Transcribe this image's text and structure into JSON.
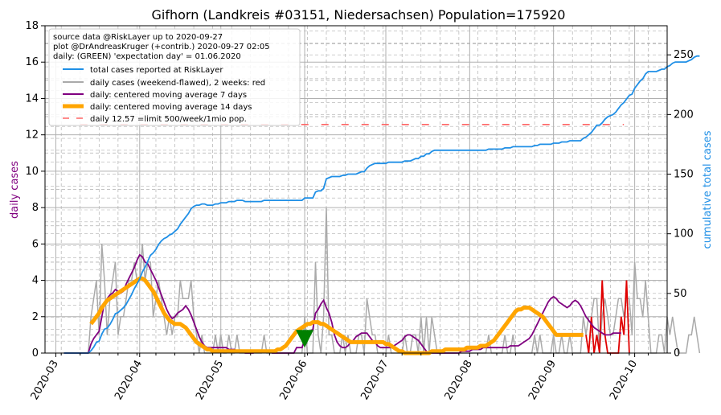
{
  "chart_data": {
    "type": "line",
    "title": "Gifhorn (Landkreis #03151, Niedersachsen) Population=175920",
    "ylabel_left": "daily cases",
    "ylabel_right": "cumulative total cases",
    "ylim_left": [
      0,
      18
    ],
    "ylim_right": [
      0,
      274.4
    ],
    "yticks_left": [
      0,
      2,
      4,
      6,
      8,
      10,
      12,
      14,
      16,
      18
    ],
    "yticks_right": [
      0,
      50,
      100,
      150,
      200,
      250
    ],
    "x_range": [
      "2020-02-26",
      "2020-10-13"
    ],
    "xticks": [
      "2020-03",
      "2020-04",
      "2020-05",
      "2020-06",
      "2020-07",
      "2020-08",
      "2020-09",
      "2020-10"
    ],
    "grid": true,
    "legend_position": "top-left",
    "legend_header": [
      "source data @RiskLayer up to 2020-09-27",
      "plot @DrAndreasKruger (+contrib.) 2020-09-27 02:05",
      "daily: (GREEN) 'expectation day' = 01.06.2020"
    ],
    "colors": {
      "cumulative": "#1f8fe6",
      "daily": "#aaaaaa",
      "daily_recent": "#e00000",
      "ma7": "#800080",
      "ma14": "#ffa500",
      "limit": "#ff6666",
      "expectation": "#008000",
      "grid": "#b0b0b0"
    },
    "limit_value": 12.57,
    "expectation_date": "2020-06-01",
    "start_date": "2020-03-04",
    "series": [
      {
        "name": "total cases reported at RiskLayer",
        "axis": "right",
        "style": "cumulative",
        "values": [
          0,
          0,
          0,
          0,
          0,
          0,
          0,
          0,
          0,
          0,
          2,
          5,
          9,
          10,
          16,
          20,
          21,
          24,
          28,
          33,
          34,
          36,
          38,
          41,
          45,
          49,
          54,
          58,
          62,
          68,
          72,
          77,
          82,
          84,
          87,
          91,
          94,
          96,
          97,
          99,
          100,
          102,
          104,
          108,
          111,
          114,
          117,
          121,
          123,
          124,
          124,
          125,
          125,
          124,
          124,
          124,
          125,
          125,
          126,
          126,
          126,
          127,
          127,
          127,
          128,
          128,
          128,
          127,
          127,
          127,
          127,
          127,
          127,
          127,
          128,
          128,
          128,
          128,
          128,
          128,
          128,
          128,
          128,
          128,
          128,
          128,
          128,
          128,
          128,
          130,
          130,
          130,
          130,
          135,
          136,
          136,
          138,
          146,
          147,
          148,
          148,
          148,
          148,
          149,
          149,
          150,
          150,
          150,
          150,
          151,
          152,
          152,
          155,
          157,
          158,
          159,
          159,
          159,
          159,
          159,
          160,
          160,
          160,
          160,
          160,
          160,
          161,
          161,
          161,
          162,
          163,
          163,
          165,
          165,
          167,
          167,
          169,
          170,
          170,
          170,
          170,
          170,
          170,
          170,
          170,
          170,
          170,
          170,
          170,
          170,
          170,
          170,
          170,
          170,
          170,
          170,
          170,
          171,
          171,
          171,
          171,
          171,
          171,
          172,
          172,
          172,
          173,
          173,
          173,
          173,
          173,
          173,
          173,
          173,
          174,
          174,
          175,
          175,
          175,
          175,
          175,
          176,
          176,
          176,
          177,
          177,
          177,
          178,
          178,
          178,
          178,
          178,
          180,
          181,
          183,
          185,
          188,
          191,
          191,
          193,
          196,
          198,
          199,
          200,
          202,
          205,
          208,
          210,
          213,
          216,
          217,
          222,
          225,
          228,
          230,
          234,
          236,
          236,
          236,
          236,
          237,
          238,
          238,
          240,
          241,
          243,
          244,
          244,
          244,
          244,
          244,
          245,
          246,
          248,
          249,
          249
        ]
      },
      {
        "name": "daily cases (weekend-flawed), 2 weeks: red",
        "axis": "left",
        "style": "daily",
        "values": [
          0,
          0,
          0,
          0,
          0,
          0,
          0,
          0,
          0,
          0,
          2,
          3,
          4,
          1,
          6,
          4,
          1,
          3,
          4,
          5,
          1,
          2,
          2,
          3,
          4,
          4,
          5,
          4,
          4,
          6,
          4,
          5,
          5,
          2,
          3,
          4,
          3,
          2,
          1,
          2,
          1,
          2,
          2,
          4,
          3,
          3,
          3,
          4,
          2,
          1,
          0,
          1,
          0,
          0,
          0,
          0,
          1,
          0,
          1,
          0,
          0,
          1,
          0,
          0,
          1,
          0,
          0,
          0,
          0,
          0,
          0,
          0,
          0,
          0,
          1,
          0,
          0,
          0,
          0,
          0,
          0,
          0,
          0,
          0,
          0,
          0,
          0,
          0,
          0,
          2,
          0,
          0,
          0,
          5,
          1,
          0,
          2,
          8,
          1,
          1,
          0,
          0,
          0,
          1,
          0,
          1,
          0,
          0,
          0,
          1,
          1,
          0,
          3,
          2,
          1,
          1,
          0,
          0,
          0,
          0,
          1,
          0,
          0,
          0,
          0,
          0,
          1,
          0,
          0,
          1,
          1,
          0,
          2,
          0,
          2,
          0,
          2,
          1,
          0,
          0,
          0,
          0,
          0,
          0,
          0,
          0,
          0,
          0,
          0,
          0,
          0,
          0,
          0,
          0,
          0,
          0,
          0,
          1,
          0,
          0,
          0,
          0,
          0,
          1,
          0,
          0,
          1,
          0,
          0,
          0,
          0,
          0,
          0,
          0,
          1,
          0,
          1,
          0,
          0,
          0,
          0,
          1,
          0,
          0,
          1,
          0,
          0,
          1,
          0,
          0,
          0,
          0,
          2,
          1,
          2,
          2,
          3,
          3,
          0,
          2,
          3,
          2,
          1,
          1,
          2,
          3,
          3,
          2,
          3,
          3,
          1,
          5,
          3,
          3,
          2,
          4,
          2,
          0,
          0,
          0,
          1,
          1,
          0,
          2,
          1,
          2,
          1,
          0,
          0,
          0,
          0,
          1,
          1,
          2,
          1,
          0
        ]
      },
      {
        "name": "daily: centered moving average 7 days",
        "axis": "left",
        "style": "ma7",
        "values": [
          0,
          0,
          0,
          0,
          0,
          0,
          0,
          0,
          0,
          0,
          0.5,
          0.8,
          1,
          1.2,
          2.0,
          2.8,
          3.0,
          3.2,
          3.3,
          3.5,
          3.4,
          3.3,
          3.4,
          3.8,
          4.1,
          4.4,
          4.7,
          5.1,
          5.4,
          5.3,
          5.0,
          4.9,
          4.6,
          4.3,
          4.0,
          3.6,
          3.2,
          2.8,
          2.4,
          2.1,
          1.9,
          2.0,
          2.2,
          2.3,
          2.4,
          2.6,
          2.4,
          2.1,
          1.7,
          1.3,
          0.9,
          0.6,
          0.4,
          0.3,
          0.3,
          0.3,
          0.3,
          0.3,
          0.3,
          0.3,
          0.3,
          0.2,
          0.2,
          0.2,
          0.1,
          0.1,
          0.1,
          0.0,
          0.0,
          0.0,
          0.0,
          0.1,
          0.1,
          0.1,
          0.1,
          0.1,
          0.1,
          0.0,
          0.0,
          0.0,
          0.0,
          0.0,
          0.0,
          0.0,
          0.0,
          0.0,
          0.3,
          0.3,
          0.3,
          0.7,
          1.0,
          1.2,
          1.3,
          2.2,
          2.4,
          2.7,
          2.9,
          2.5,
          2.2,
          1.7,
          1.0,
          0.6,
          0.4,
          0.3,
          0.3,
          0.4,
          0.6,
          0.7,
          0.9,
          1.0,
          1.1,
          1.1,
          1.1,
          0.9,
          0.7,
          0.6,
          0.4,
          0.3,
          0.3,
          0.3,
          0.3,
          0.3,
          0.4,
          0.5,
          0.6,
          0.7,
          0.9,
          1.0,
          1.0,
          0.9,
          0.8,
          0.7,
          0.5,
          0.3,
          0.1,
          0.0,
          0.0,
          0.0,
          0.0,
          0.0,
          0.0,
          0.0,
          0.0,
          0.0,
          0.0,
          0.0,
          0.0,
          0.1,
          0.1,
          0.1,
          0.1,
          0.2,
          0.2,
          0.2,
          0.2,
          0.3,
          0.3,
          0.3,
          0.3,
          0.3,
          0.3,
          0.3,
          0.3,
          0.3,
          0.3,
          0.4,
          0.4,
          0.4,
          0.4,
          0.5,
          0.6,
          0.7,
          0.8,
          1.0,
          1.3,
          1.6,
          1.9,
          2.2,
          2.5,
          2.8,
          3.0,
          3.1,
          3.0,
          2.8,
          2.7,
          2.6,
          2.5,
          2.6,
          2.8,
          2.9,
          2.8,
          2.6,
          2.3,
          2.0,
          1.8,
          1.6,
          1.4,
          1.3,
          1.2,
          1.1,
          1.0,
          1.0,
          1.0,
          1.1,
          1.1,
          1.1,
          1.1
        ]
      },
      {
        "name": "daily: centered moving average 14 days",
        "axis": "left",
        "style": "ma14",
        "values": [
          null,
          null,
          null,
          null,
          null,
          null,
          null,
          null,
          null,
          null,
          1.6,
          1.8,
          2.0,
          2.2,
          2.5,
          2.7,
          2.9,
          3.0,
          3.1,
          3.2,
          3.3,
          3.4,
          3.5,
          3.6,
          3.7,
          3.8,
          3.9,
          4.0,
          4.1,
          4.1,
          4.0,
          3.8,
          3.6,
          3.4,
          3.1,
          2.8,
          2.5,
          2.2,
          2.0,
          1.8,
          1.7,
          1.6,
          1.6,
          1.6,
          1.5,
          1.4,
          1.2,
          1.0,
          0.8,
          0.6,
          0.5,
          0.4,
          0.3,
          0.2,
          0.2,
          0.1,
          0.1,
          0.1,
          0.1,
          0.1,
          0.1,
          0.1,
          0.1,
          0.1,
          0.1,
          0.1,
          0.1,
          0.1,
          0.1,
          0.1,
          0.1,
          0.1,
          0.1,
          0.1,
          0.1,
          0.1,
          0.1,
          0.1,
          0.1,
          0.2,
          0.2,
          0.3,
          0.4,
          0.6,
          0.8,
          1.0,
          1.2,
          1.3,
          1.4,
          1.5,
          1.6,
          1.6,
          1.7,
          1.7,
          1.7,
          1.6,
          1.6,
          1.5,
          1.4,
          1.3,
          1.2,
          1.1,
          1.0,
          0.9,
          0.8,
          0.7,
          0.6,
          0.6,
          0.6,
          0.6,
          0.6,
          0.6,
          0.6,
          0.6,
          0.6,
          0.6,
          0.6,
          0.6,
          0.6,
          0.5,
          0.5,
          0.4,
          0.3,
          0.2,
          0.1,
          0.1,
          0.0,
          0.0,
          0.0,
          0.0,
          0.0,
          0.0,
          0.0,
          0.0,
          0.0,
          0.0,
          0.1,
          0.1,
          0.1,
          0.1,
          0.1,
          0.2,
          0.2,
          0.2,
          0.2,
          0.2,
          0.2,
          0.2,
          0.2,
          0.3,
          0.3,
          0.3,
          0.3,
          0.3,
          0.4,
          0.4,
          0.4,
          0.5,
          0.6,
          0.7,
          0.9,
          1.1,
          1.3,
          1.5,
          1.7,
          1.9,
          2.1,
          2.3,
          2.4,
          2.4,
          2.5,
          2.5,
          2.5,
          2.4,
          2.3,
          2.2,
          2.1,
          2.0,
          1.8,
          1.6,
          1.4,
          1.2,
          1.0,
          1.0,
          1.0,
          1.0,
          1.0,
          1.0,
          1.0,
          1.0,
          1.0,
          1.0,
          1.0
        ]
      },
      {
        "name": "daily 12.57 =limit 500/week/1mio pop.",
        "axis": "left",
        "style": "limit",
        "values": [
          12.57
        ]
      }
    ],
    "recent_daily": {
      "start_date": "2020-09-13",
      "values": [
        1,
        0,
        2,
        0,
        1,
        0,
        4,
        1,
        0,
        0,
        0,
        0,
        0,
        2,
        1,
        4,
        0
      ]
    }
  }
}
